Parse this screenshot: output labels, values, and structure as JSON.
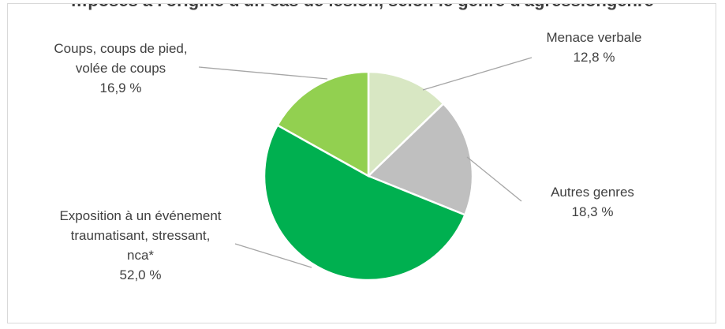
{
  "chart_data": {
    "type": "pie",
    "title": "…posés à l'origine d'un cas de lésion, selon le genre d'agressiongenre",
    "slices": [
      {
        "label_lines": [
          "Menace verbale"
        ],
        "value": 12.8,
        "value_label": "12,8 %",
        "color": "#d8e7c3"
      },
      {
        "label_lines": [
          "Autres genres"
        ],
        "value": 18.3,
        "value_label": "18,3 %",
        "color": "#bfbfbf"
      },
      {
        "label_lines": [
          "Exposition à un événement",
          "traumatisant, stressant,",
          "nca*"
        ],
        "value": 52.0,
        "value_label": "52,0 %",
        "color": "#00b050"
      },
      {
        "label_lines": [
          "Coups, coups de pied,",
          "volée de coups"
        ],
        "value": 16.9,
        "value_label": "16,9 %",
        "color": "#92d050"
      }
    ]
  }
}
